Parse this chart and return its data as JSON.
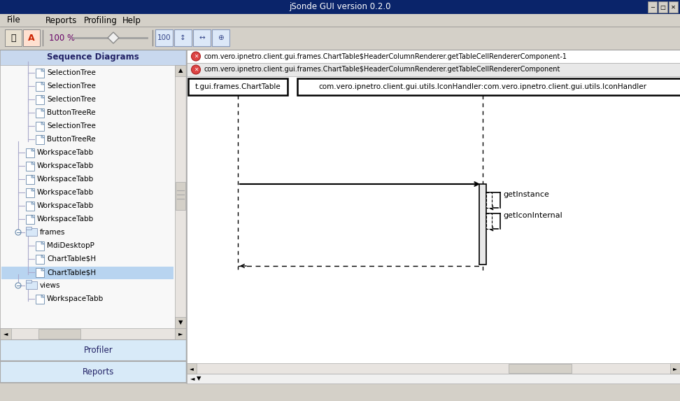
{
  "title": "jSonde GUI version 0.2.0",
  "bg_color": "#d4d0c8",
  "tab1_text": "com.vero.ipnetro.client.gui.frames.ChartTable$HeaderColumnRenderer.getTableCellRendererComponent-1",
  "tab2_text": "com.vero.ipnetro.client.gui.frames.ChartTable$HeaderColumnRenderer.getTableCellRendererComponent",
  "left_panel_title": "Sequence Diagrams",
  "tree_items": [
    "SelectionTree",
    "SelectionTree",
    "SelectionTree",
    "ButtonTreeRe",
    "SelectionTree",
    "ButtonTreeRe",
    "WorkspaceTabb",
    "WorkspaceTabb",
    "WorkspaceTabb",
    "WorkspaceTabb",
    "WorkspaceTabb",
    "WorkspaceTabb",
    "frames",
    "MdiDesktopP",
    "ChartTable$H",
    "ChartTable$H",
    "views",
    "WorkspaceTabb"
  ],
  "tree_depths": [
    3,
    3,
    3,
    3,
    3,
    3,
    2,
    2,
    2,
    2,
    2,
    2,
    2,
    3,
    3,
    3,
    2,
    3
  ],
  "tree_folders": [
    12,
    16
  ],
  "tree_highlighted": 15,
  "actor1_label": "t.gui.frames.ChartTable",
  "actor2_label": "com.vero.ipnetro.client.gui.utils.IconHandler:com.vero.ipnetro.client.gui.utils.IconHandler",
  "call1_label": "getInstance",
  "call2_label": "getIconInternal",
  "profiler_label": "Profiler",
  "reports_label": "Reports",
  "toolbar_zoom": "100 %"
}
